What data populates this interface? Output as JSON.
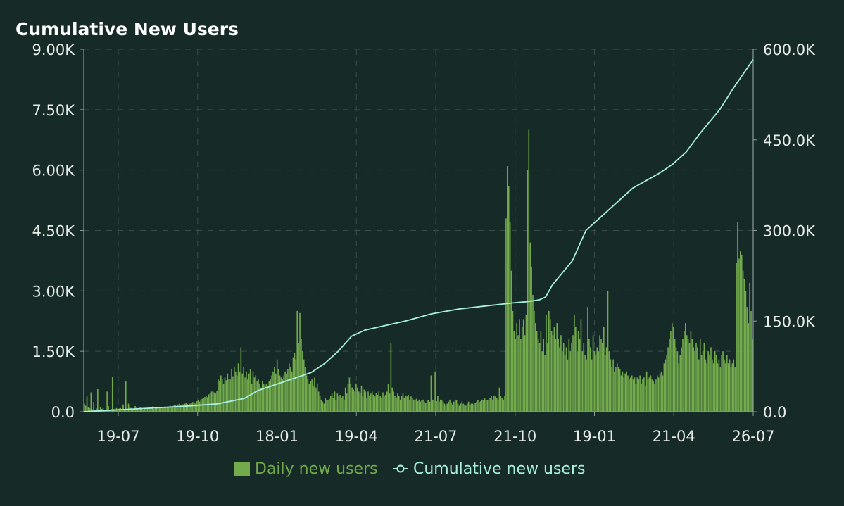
{
  "colors": {
    "background": "#162b27",
    "bars": "#72aa4c",
    "line": "#a8f0dc",
    "grid": "#3a4d48",
    "text": "#e8ece9",
    "axis": "#8a9a95"
  },
  "chart_data": {
    "type": "bar",
    "title": "Cumulative New Users",
    "grid": true,
    "legend_position": "bottom-center",
    "x_ticks": [
      "19-07",
      "19-10",
      "18-01",
      "19-04",
      "21-07",
      "21-10",
      "19-01",
      "21-04",
      "26-07"
    ],
    "left_axis": {
      "ylim": [
        0,
        9000
      ],
      "tick_labels": [
        "0.0",
        "1.50K",
        "3.00K",
        "4.50K",
        "6.00K",
        "7.50K",
        "9.00K"
      ]
    },
    "right_axis": {
      "ylim": [
        0,
        600000
      ],
      "tick_labels": [
        "0.0",
        "150.0K",
        "300.0K",
        "450.0K",
        "600.0K"
      ]
    },
    "series": [
      {
        "name": "Daily new users",
        "type": "bar",
        "axis": "left",
        "values": [
          200,
          150,
          380,
          120,
          90,
          480,
          60,
          240,
          40,
          80,
          560,
          40,
          120,
          70,
          90,
          20,
          50,
          500,
          140,
          40,
          70,
          860,
          70,
          50,
          90,
          60,
          80,
          90,
          40,
          180,
          60,
          750,
          70,
          200,
          120,
          90,
          60,
          70,
          140,
          100,
          80,
          120,
          110,
          90,
          50,
          70,
          60,
          80,
          110,
          90,
          100,
          130,
          70,
          80,
          100,
          90,
          110,
          100,
          120,
          90,
          130,
          110,
          120,
          100,
          150,
          130,
          140,
          160,
          170,
          150,
          180,
          200,
          160,
          190,
          180,
          200,
          220,
          190,
          180,
          200,
          220,
          240,
          230,
          200,
          260,
          280,
          250,
          300,
          320,
          350,
          370,
          400,
          360,
          430,
          460,
          500,
          520,
          480,
          450,
          520,
          800,
          750,
          900,
          820,
          700,
          850,
          780,
          950,
          820,
          800,
          1050,
          880,
          1100,
          1000,
          900,
          1200,
          1000,
          1600,
          950,
          1100,
          850,
          1000,
          800,
          950,
          1050,
          700,
          1000,
          850,
          900,
          750,
          800,
          700,
          600,
          750,
          680,
          650,
          700,
          600,
          750,
          800,
          900,
          1000,
          1100,
          950,
          1300,
          1050,
          900,
          850,
          800,
          900,
          1000,
          950,
          1050,
          1200,
          1100,
          1000,
          1350,
          1450,
          1300,
          2500,
          1700,
          2450,
          1800,
          1500,
          1300,
          1100,
          900,
          800,
          700,
          750,
          800,
          650,
          850,
          600,
          700,
          500,
          400,
          300,
          250,
          200,
          350,
          300,
          280,
          320,
          400,
          450,
          350,
          500,
          300,
          450,
          380,
          420,
          350,
          400,
          300,
          600,
          450,
          700,
          850,
          700,
          600,
          550,
          500,
          700,
          600,
          500,
          450,
          650,
          400,
          550,
          500,
          350,
          500,
          400,
          450,
          500,
          420,
          380,
          460,
          420,
          500,
          400,
          350,
          480,
          380,
          420,
          500,
          700,
          450,
          1700,
          600,
          500,
          400,
          350,
          450,
          400,
          300,
          400,
          450,
          350,
          400,
          380,
          420,
          300,
          380,
          350,
          300,
          280,
          320,
          260,
          300,
          250,
          280,
          300,
          250,
          220,
          300,
          280,
          250,
          900,
          300,
          280,
          1000,
          260,
          400,
          250,
          300,
          280,
          250,
          200,
          150,
          200,
          250,
          300,
          220,
          180,
          250,
          300,
          280,
          200,
          150,
          200,
          250,
          200,
          180,
          150,
          200,
          250,
          180,
          200,
          200,
          180,
          220,
          250,
          280,
          240,
          260,
          300,
          280,
          330,
          290,
          280,
          300,
          350,
          400,
          300,
          400,
          380,
          350,
          300,
          600,
          400,
          350,
          300,
          400,
          4800,
          6100,
          5600,
          4700,
          3500,
          2500,
          2000,
          1800,
          2200,
          1900,
          2300,
          1800,
          2100,
          2300,
          1900,
          2400,
          6000,
          7000,
          4200,
          3600,
          2900,
          2500,
          2200,
          2000,
          1800,
          1700,
          2000,
          1500,
          1800,
          1400,
          2400,
          1700,
          2500,
          2300,
          2000,
          1900,
          2100,
          1800,
          2200,
          1800,
          1600,
          1900,
          1500,
          1700,
          1400,
          1600,
          1300,
          1800,
          1500,
          1700,
          1900,
          2400,
          2100,
          1500,
          2000,
          1800,
          2300,
          1500,
          1700,
          1400,
          1300,
          2600,
          1800,
          1600,
          1300,
          1900,
          1500,
          1400,
          1600,
          1500,
          1900,
          1800,
          1700,
          2100,
          1400,
          1600,
          3000,
          1500,
          1300,
          1100,
          1300,
          1000,
          1100,
          1200,
          1100,
          1050,
          900,
          1000,
          850,
          950,
          1000,
          900,
          800,
          850,
          900,
          800,
          850,
          700,
          850,
          800,
          900,
          700,
          800,
          850,
          650,
          1000,
          800,
          850,
          900,
          800,
          750,
          700,
          800,
          900,
          850,
          950,
          1000,
          900,
          1200,
          1300,
          1400,
          1600,
          1800,
          2000,
          2200,
          2100,
          1800,
          1600,
          1500,
          1200,
          1400,
          1600,
          1800,
          2000,
          2200,
          1900,
          1800,
          1700,
          2000,
          1800,
          1600,
          1500,
          1700,
          1600,
          1300,
          1800,
          1400,
          1500,
          1700,
          1300,
          1200,
          1500,
          1400,
          1600,
          1300,
          1200,
          1500,
          1400,
          1200,
          1300,
          1100,
          1400,
          1500,
          1300,
          1200,
          1400,
          1200,
          1300,
          1100,
          1200,
          1300,
          1100,
          3700,
          4700,
          3800,
          4000,
          3900,
          3500,
          3300,
          3000,
          2600,
          2200,
          3200,
          2500,
          1800
        ]
      },
      {
        "name": "Cumulative new users",
        "type": "line",
        "axis": "right",
        "x_fraction": [
          0,
          0.05,
          0.1,
          0.15,
          0.2,
          0.24,
          0.26,
          0.3,
          0.34,
          0.36,
          0.38,
          0.4,
          0.42,
          0.44,
          0.48,
          0.52,
          0.56,
          0.6,
          0.64,
          0.66,
          0.68,
          0.69,
          0.7,
          0.73,
          0.75,
          0.78,
          0.82,
          0.86,
          0.88,
          0.9,
          0.92,
          0.95,
          0.97,
          1.0
        ],
        "values": [
          0,
          3000,
          6000,
          9000,
          13000,
          22000,
          35000,
          50000,
          65000,
          80000,
          100000,
          125000,
          135000,
          140000,
          150000,
          162000,
          170000,
          175000,
          180000,
          182000,
          185000,
          190000,
          210000,
          250000,
          300000,
          330000,
          370000,
          395000,
          410000,
          430000,
          460000,
          500000,
          535000,
          583000
        ]
      }
    ]
  }
}
